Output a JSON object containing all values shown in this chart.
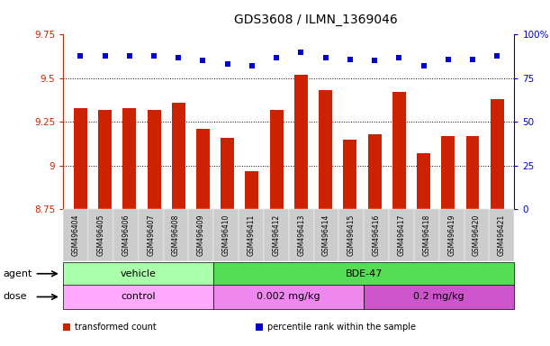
{
  "title": "GDS3608 / ILMN_1369046",
  "samples": [
    "GSM496404",
    "GSM496405",
    "GSM496406",
    "GSM496407",
    "GSM496408",
    "GSM496409",
    "GSM496410",
    "GSM496411",
    "GSM496412",
    "GSM496413",
    "GSM496414",
    "GSM496415",
    "GSM496416",
    "GSM496417",
    "GSM496418",
    "GSM496419",
    "GSM496420",
    "GSM496421"
  ],
  "transformed_counts": [
    9.33,
    9.32,
    9.33,
    9.32,
    9.36,
    9.21,
    9.16,
    8.97,
    9.32,
    9.52,
    9.43,
    9.15,
    9.18,
    9.42,
    9.07,
    9.17,
    9.17,
    9.38
  ],
  "percentile_ranks": [
    88,
    88,
    88,
    88,
    87,
    85,
    83,
    82,
    87,
    90,
    87,
    86,
    85,
    87,
    82,
    86,
    86,
    88
  ],
  "ylim_left": [
    8.75,
    9.75
  ],
  "ylim_right": [
    0,
    100
  ],
  "yticks_left": [
    8.75,
    9.0,
    9.25,
    9.5,
    9.75
  ],
  "ytick_labels_left": [
    "8.75",
    "9",
    "9.25",
    "9.5",
    "9.75"
  ],
  "yticks_right": [
    0,
    25,
    50,
    75,
    100
  ],
  "ytick_labels_right": [
    "0",
    "25",
    "50",
    "75",
    "100%"
  ],
  "bar_color": "#cc2200",
  "dot_color": "#0000cc",
  "bg_color": "#ffffff",
  "cell_bg": "#d8d8d8",
  "agent_colors": [
    "#99ff99",
    "#55dd55"
  ],
  "agent_labels": [
    {
      "label": "vehicle",
      "start": 0,
      "end": 5,
      "color": "#aaffaa"
    },
    {
      "label": "BDE-47",
      "start": 6,
      "end": 17,
      "color": "#55dd55"
    }
  ],
  "dose_labels": [
    {
      "label": "control",
      "start": 0,
      "end": 5,
      "color": "#ffaaff"
    },
    {
      "label": "0.002 mg/kg",
      "start": 6,
      "end": 11,
      "color": "#ee88ee"
    },
    {
      "label": "0.2 mg/kg",
      "start": 12,
      "end": 17,
      "color": "#cc55cc"
    }
  ],
  "legend_items": [
    {
      "label": "transformed count",
      "color": "#cc2200"
    },
    {
      "label": "percentile rank within the sample",
      "color": "#0000cc"
    }
  ],
  "title_fontsize": 10,
  "tick_fontsize": 7.5,
  "label_fontsize": 8,
  "bar_bottom": 8.75
}
